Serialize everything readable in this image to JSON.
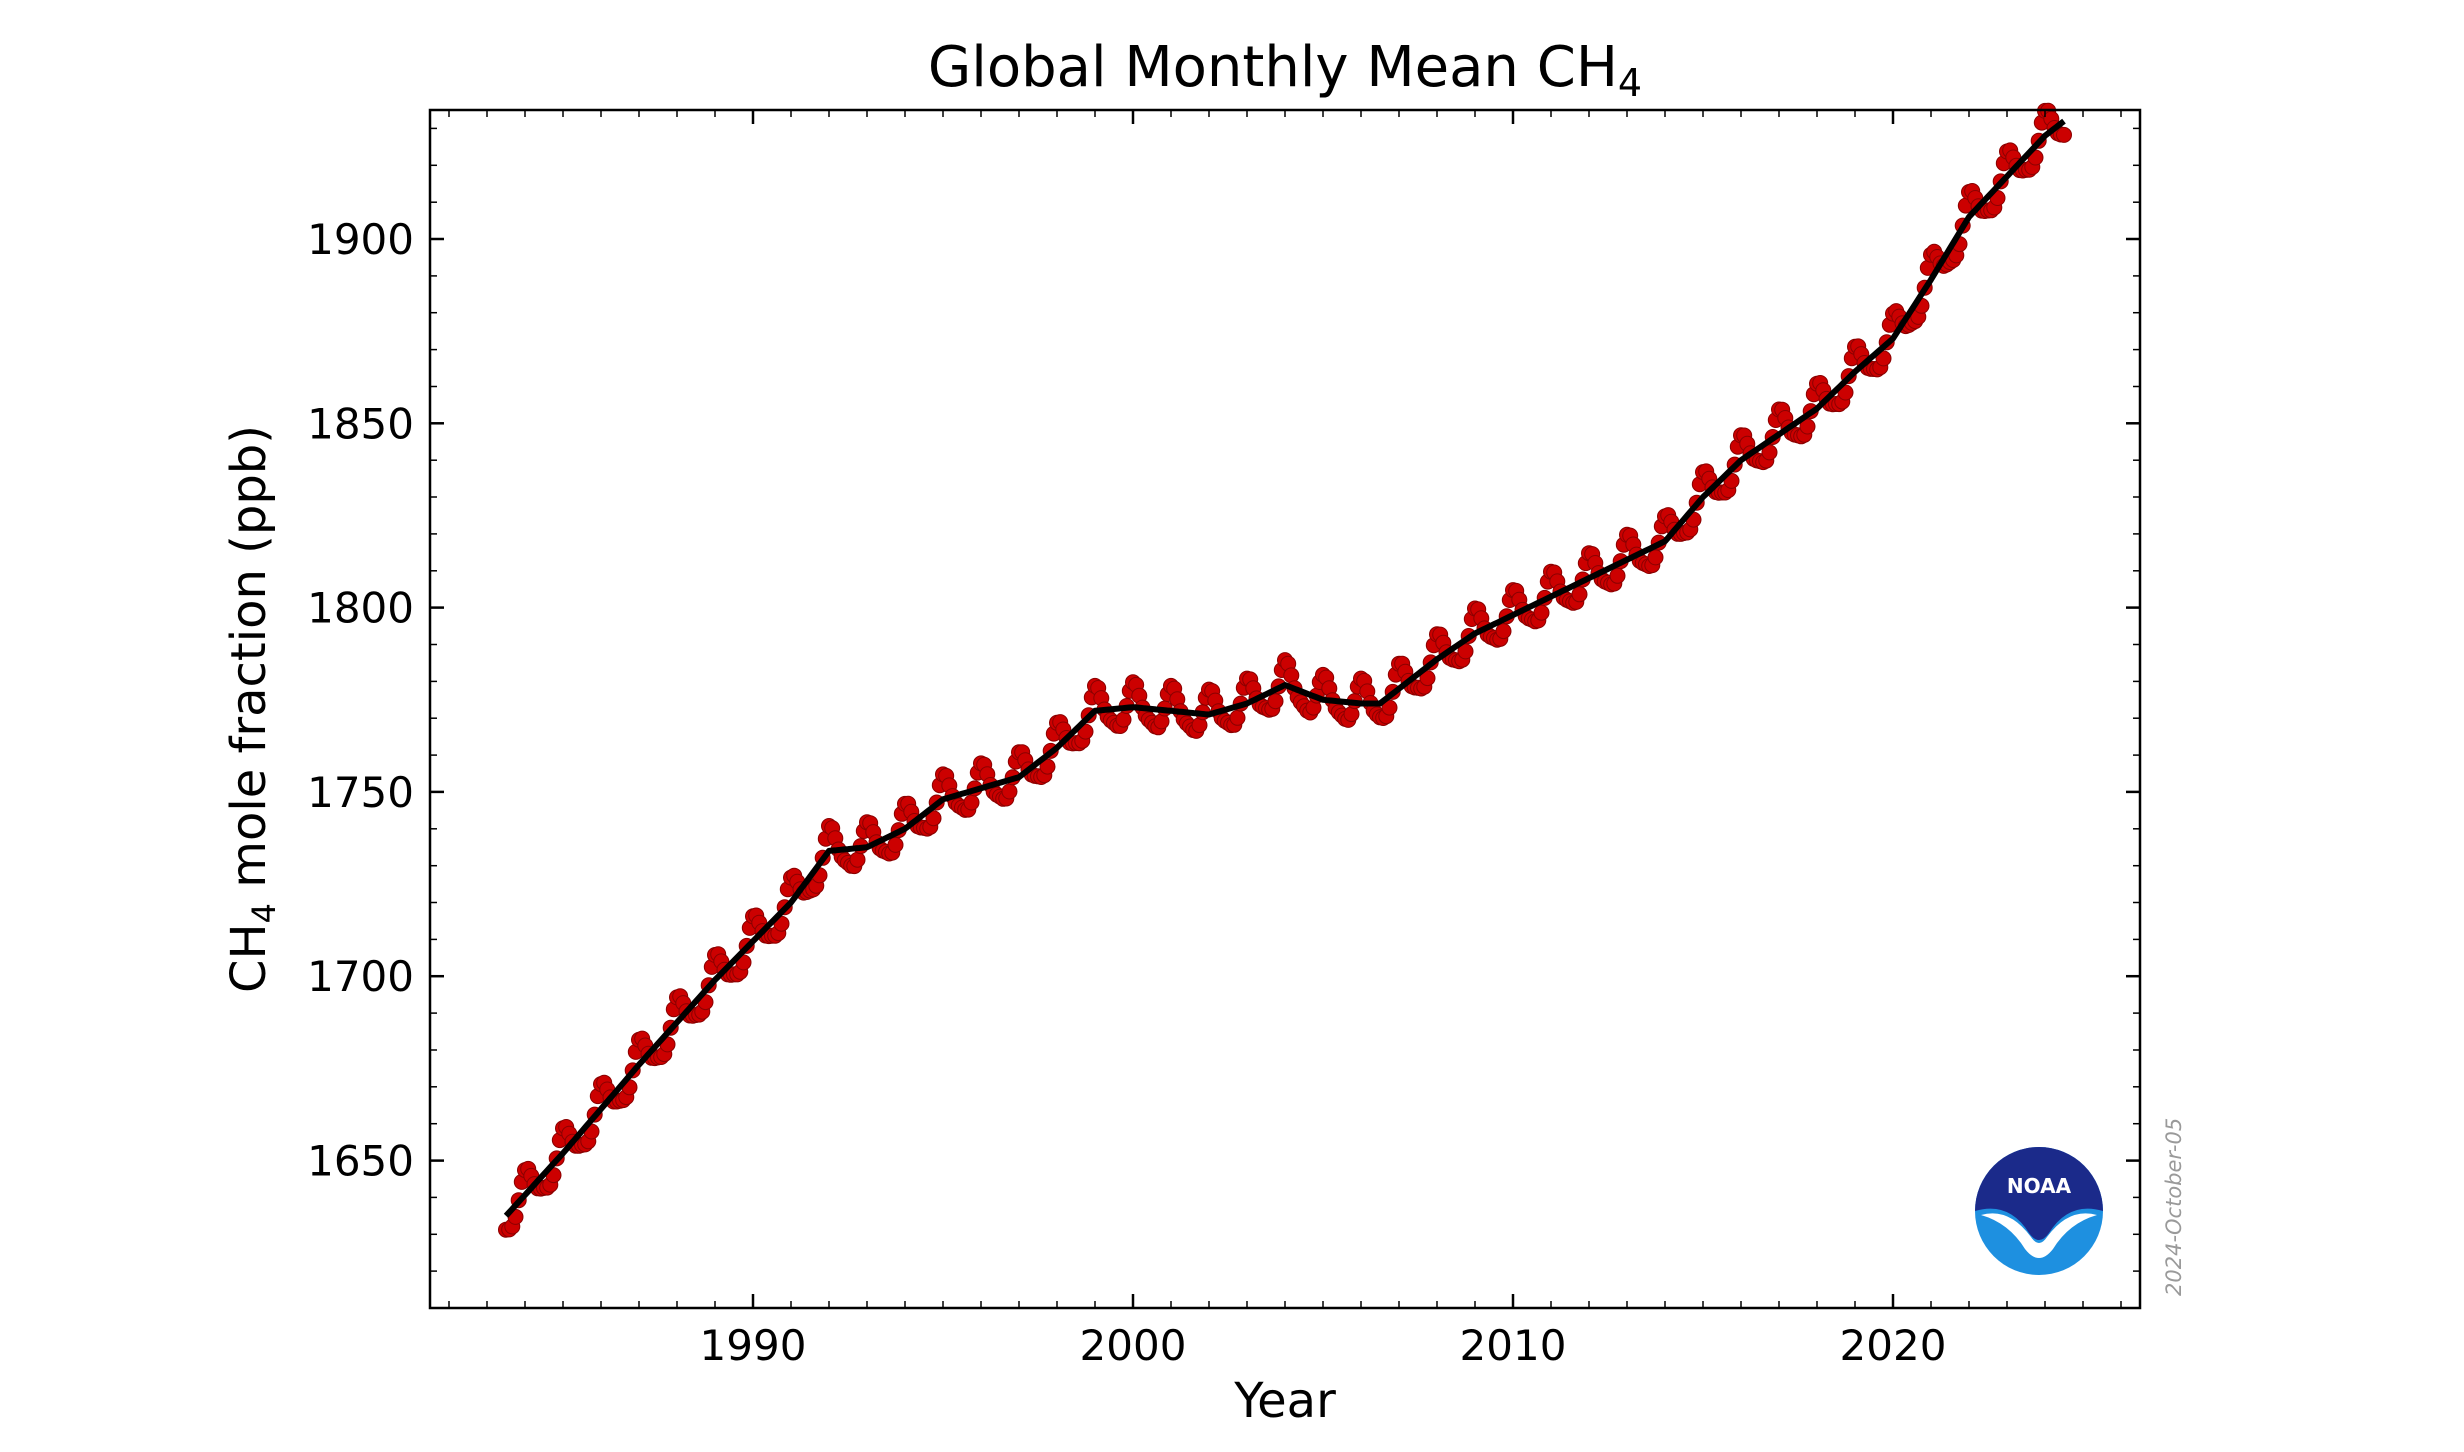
{
  "chart_data": {
    "type": "scatter",
    "title": "Global Monthly Mean CH",
    "title_subscript": "4",
    "xlabel": "Year",
    "ylabel": "CH",
    "ylabel_subscript": "4",
    "ylabel_suffix": " mole fraction (ppb)",
    "xlim": [
      1981.5,
      2026.5
    ],
    "ylim": [
      1610,
      1935
    ],
    "x_ticks": [
      1990,
      2000,
      2010,
      2020
    ],
    "x_tick_labels": [
      "1990",
      "2000",
      "2010",
      "2020"
    ],
    "y_ticks": [
      1650,
      1700,
      1750,
      1800,
      1850,
      1900
    ],
    "y_tick_labels": [
      "1650",
      "1700",
      "1750",
      "1800",
      "1850",
      "1900"
    ],
    "grid": false,
    "seasonal_amplitude_ppb": 5.5,
    "series": [
      {
        "role": "monthly-mean",
        "color": "#cc0000",
        "marker": "circle",
        "x_start": 1983.5,
        "x_end": 2024.5,
        "points_per_year": 12
      },
      {
        "role": "trend",
        "color": "#000000",
        "x": [
          1983.5,
          1985,
          1987,
          1989,
          1991,
          1992,
          1993,
          1994,
          1995,
          1996,
          1997,
          1998,
          1999,
          2000,
          2001,
          2002,
          2003,
          2004,
          2005,
          2006,
          2006.5,
          2007,
          2008,
          2009,
          2010,
          2011,
          2012,
          2013,
          2014,
          2015,
          2016,
          2017,
          2018,
          2019,
          2020,
          2021,
          2022,
          2023,
          2024,
          2024.5
        ],
        "y": [
          1635,
          1652,
          1676,
          1699,
          1720,
          1734,
          1735,
          1740,
          1748,
          1751,
          1754,
          1762,
          1772,
          1773,
          1772,
          1771,
          1774,
          1779,
          1775,
          1774,
          1774,
          1778,
          1786,
          1793,
          1798,
          1803,
          1808,
          1813,
          1818,
          1830,
          1840,
          1847,
          1854,
          1864,
          1873,
          1889,
          1906,
          1917,
          1928,
          1932
        ]
      }
    ]
  },
  "date_stamp": "2024-October-05",
  "logo": {
    "text": "NOAA",
    "colors": {
      "dark": "#1b2a8a",
      "light": "#1e90e0",
      "white": "#ffffff"
    }
  }
}
